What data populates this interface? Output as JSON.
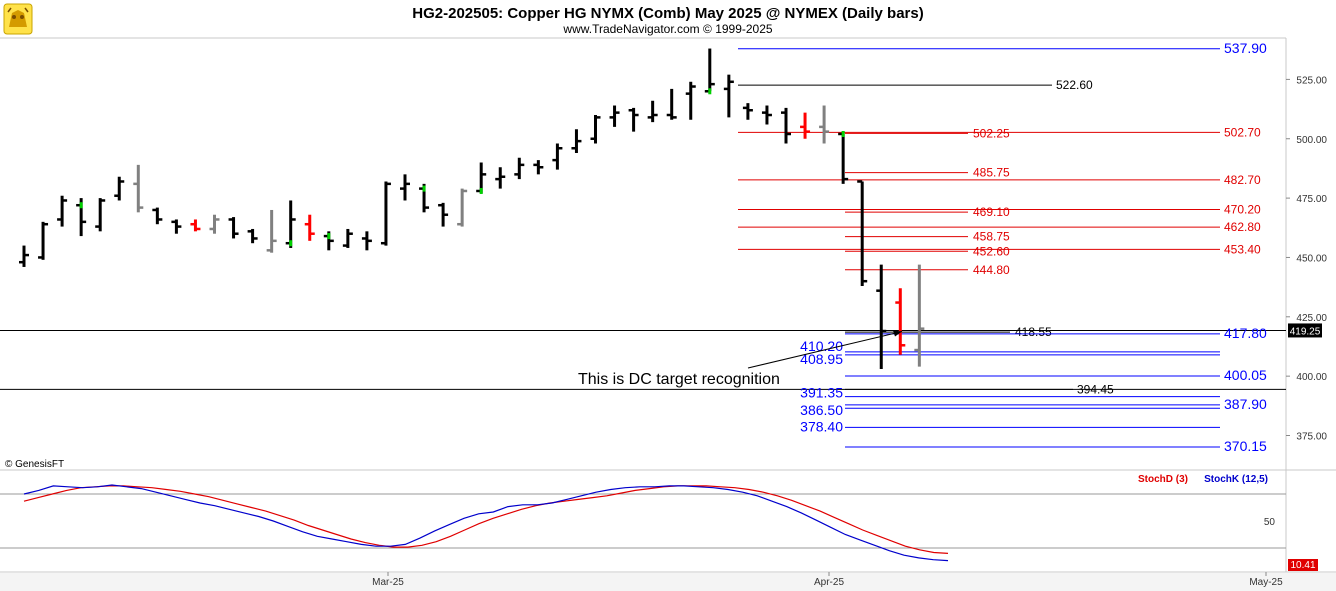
{
  "header": {
    "title": "HG2-202505:  Copper HG NYMX (Comb) May 2025 @ NYMEX  (Daily bars)",
    "subtitle": "www.TradeNavigator.com © 1999-2025",
    "logo_icon": "bull-and-bear-logo-icon"
  },
  "colors": {
    "background": "#ffffff",
    "frame": "#c8c8c8",
    "bar_black": "#000000",
    "bar_red": "#ff0000",
    "bar_gray": "#808080",
    "bar_green": "#00d000",
    "level_blue": "#0000ff",
    "level_red": "#e00000",
    "level_black": "#000000",
    "stoch_d": "#e00000",
    "stoch_k": "#0000cc"
  },
  "chart_data": [
    {
      "type": "ohlc",
      "title": "HG2-202505:  Copper HG NYMX (Comb) May 2025 @ NYMEX  (Daily bars)",
      "watermark": "© GenesisFT",
      "annotation": "This is DC target recognition",
      "last_price_label": "419.25",
      "ylim": [
        365,
        542
      ],
      "y_ticks": [
        "375.00",
        "400.00",
        "425.00",
        "450.00",
        "475.00",
        "500.00",
        "525.00"
      ],
      "x_ticks": [
        "Mar-25",
        "Apr-25",
        "May-25"
      ],
      "bars": [
        {
          "o": 448,
          "h": 455,
          "l": 446,
          "c": 451,
          "color": "black"
        },
        {
          "o": 450,
          "h": 465,
          "l": 449,
          "c": 464,
          "color": "black"
        },
        {
          "o": 466,
          "h": 476,
          "l": 463,
          "c": 474,
          "color": "black"
        },
        {
          "o": 472,
          "h": 475,
          "l": 459,
          "c": 465,
          "color": "black",
          "tick": "green"
        },
        {
          "o": 463,
          "h": 475,
          "l": 461,
          "c": 474,
          "color": "black"
        },
        {
          "o": 476,
          "h": 484,
          "l": 474,
          "c": 482,
          "color": "black"
        },
        {
          "o": 481,
          "h": 489,
          "l": 469,
          "c": 471,
          "color": "gray"
        },
        {
          "o": 470,
          "h": 471,
          "l": 464,
          "c": 466,
          "color": "black"
        },
        {
          "o": 465,
          "h": 466,
          "l": 460,
          "c": 463,
          "color": "black"
        },
        {
          "o": 464,
          "h": 466,
          "l": 461,
          "c": 462,
          "color": "red"
        },
        {
          "o": 462,
          "h": 468,
          "l": 460,
          "c": 466,
          "color": "gray"
        },
        {
          "o": 466,
          "h": 467,
          "l": 458,
          "c": 460,
          "color": "black"
        },
        {
          "o": 461,
          "h": 462,
          "l": 456,
          "c": 458,
          "color": "black"
        },
        {
          "o": 453,
          "h": 470,
          "l": 452,
          "c": 457,
          "color": "gray"
        },
        {
          "o": 456,
          "h": 474,
          "l": 454,
          "c": 466,
          "color": "black",
          "tick": "green"
        },
        {
          "o": 464,
          "h": 468,
          "l": 457,
          "c": 460,
          "color": "red"
        },
        {
          "o": 459,
          "h": 461,
          "l": 453,
          "c": 457,
          "color": "black",
          "tick": "green"
        },
        {
          "o": 455,
          "h": 462,
          "l": 454,
          "c": 460,
          "color": "black"
        },
        {
          "o": 458,
          "h": 461,
          "l": 453,
          "c": 457,
          "color": "black"
        },
        {
          "o": 456,
          "h": 482,
          "l": 455,
          "c": 481,
          "color": "black"
        },
        {
          "o": 479,
          "h": 485,
          "l": 474,
          "c": 481,
          "color": "black"
        },
        {
          "o": 479,
          "h": 481,
          "l": 469,
          "c": 471,
          "color": "black",
          "tick": "green"
        },
        {
          "o": 472,
          "h": 473,
          "l": 463,
          "c": 468,
          "color": "black"
        },
        {
          "o": 464,
          "h": 479,
          "l": 463,
          "c": 478,
          "color": "gray"
        },
        {
          "o": 478,
          "h": 490,
          "l": 477,
          "c": 485,
          "color": "black",
          "tick": "green"
        },
        {
          "o": 483,
          "h": 488,
          "l": 479,
          "c": 484,
          "color": "black"
        },
        {
          "o": 485,
          "h": 492,
          "l": 483,
          "c": 489,
          "color": "black"
        },
        {
          "o": 489,
          "h": 491,
          "l": 485,
          "c": 488,
          "color": "black"
        },
        {
          "o": 491,
          "h": 498,
          "l": 487,
          "c": 496,
          "color": "black"
        },
        {
          "o": 496,
          "h": 504,
          "l": 494,
          "c": 499,
          "color": "black"
        },
        {
          "o": 500,
          "h": 510,
          "l": 498,
          "c": 509,
          "color": "black"
        },
        {
          "o": 509,
          "h": 514,
          "l": 505,
          "c": 511,
          "color": "black"
        },
        {
          "o": 512,
          "h": 513,
          "l": 503,
          "c": 510,
          "color": "black"
        },
        {
          "o": 509,
          "h": 516,
          "l": 507,
          "c": 510,
          "color": "black"
        },
        {
          "o": 510,
          "h": 521,
          "l": 508,
          "c": 509,
          "color": "black"
        },
        {
          "o": 519,
          "h": 524,
          "l": 508,
          "c": 522,
          "color": "black"
        },
        {
          "o": 520,
          "h": 538,
          "l": 520,
          "c": 523,
          "color": "black",
          "tick": "green"
        },
        {
          "o": 521,
          "h": 527,
          "l": 509,
          "c": 524,
          "color": "black"
        },
        {
          "o": 513,
          "h": 515,
          "l": 508,
          "c": 512,
          "color": "black"
        },
        {
          "o": 511,
          "h": 514,
          "l": 506,
          "c": 510,
          "color": "black"
        },
        {
          "o": 511,
          "h": 513,
          "l": 498,
          "c": 502,
          "color": "black"
        },
        {
          "o": 505,
          "h": 511,
          "l": 500,
          "c": 503,
          "color": "red"
        },
        {
          "o": 505,
          "h": 514,
          "l": 498,
          "c": 503,
          "color": "gray"
        },
        {
          "o": 502,
          "h": 503,
          "l": 481,
          "c": 483,
          "color": "black",
          "tick": "green"
        },
        {
          "o": 482,
          "h": 482,
          "l": 438,
          "c": 440,
          "color": "black"
        },
        {
          "o": 436,
          "h": 447,
          "l": 403,
          "c": 419,
          "color": "black"
        },
        {
          "o": 431,
          "h": 437,
          "l": 409,
          "c": 413,
          "color": "red"
        },
        {
          "o": 411,
          "h": 447,
          "l": 404,
          "c": 420,
          "color": "gray"
        }
      ],
      "levels": [
        {
          "label": "537.90",
          "value": 537.9,
          "color": "blue",
          "side": "right"
        },
        {
          "label": "522.60",
          "value": 522.6,
          "color": "black",
          "side": "right"
        },
        {
          "label": "502.70",
          "value": 502.7,
          "color": "red",
          "side": "right"
        },
        {
          "label": "502.25",
          "value": 502.25,
          "color": "red",
          "side": "inner"
        },
        {
          "label": "485.75",
          "value": 485.75,
          "color": "red",
          "side": "inner"
        },
        {
          "label": "482.70",
          "value": 482.7,
          "color": "red",
          "side": "right"
        },
        {
          "label": "470.20",
          "value": 470.2,
          "color": "red",
          "side": "right"
        },
        {
          "label": "469.10",
          "value": 469.1,
          "color": "red",
          "side": "inner"
        },
        {
          "label": "462.80",
          "value": 462.8,
          "color": "red",
          "side": "right"
        },
        {
          "label": "458.75",
          "value": 458.75,
          "color": "red",
          "side": "inner"
        },
        {
          "label": "453.40",
          "value": 453.4,
          "color": "red",
          "side": "right"
        },
        {
          "label": "452.60",
          "value": 452.6,
          "color": "red",
          "side": "inner"
        },
        {
          "label": "444.80",
          "value": 444.8,
          "color": "red",
          "side": "inner"
        },
        {
          "label": "418.55",
          "value": 418.55,
          "color": "black",
          "side": "inner"
        },
        {
          "label": "417.80",
          "value": 417.8,
          "color": "blue",
          "side": "right"
        },
        {
          "label": "410.20",
          "value": 410.2,
          "color": "blue",
          "side": "left"
        },
        {
          "label": "408.95",
          "value": 408.95,
          "color": "blue",
          "side": "left"
        },
        {
          "label": "400.05",
          "value": 400.05,
          "color": "blue",
          "side": "right"
        },
        {
          "label": "394.45",
          "value": 394.45,
          "color": "black",
          "side": "inner"
        },
        {
          "label": "391.35",
          "value": 391.35,
          "color": "blue",
          "side": "left"
        },
        {
          "label": "387.90",
          "value": 387.9,
          "color": "blue",
          "side": "right"
        },
        {
          "label": "386.50",
          "value": 386.5,
          "color": "blue",
          "side": "left"
        },
        {
          "label": "378.40",
          "value": 378.4,
          "color": "blue",
          "side": "left"
        },
        {
          "label": "370.15",
          "value": 370.15,
          "color": "blue",
          "side": "right"
        }
      ]
    },
    {
      "type": "line",
      "legend": [
        "StochD (3)",
        "StochK (12,5)"
      ],
      "ylim": [
        0,
        100
      ],
      "y_ticks": [
        "50"
      ],
      "last_value_label": "10.41",
      "series": [
        {
          "name": "StochD (3)",
          "color": "red",
          "values": [
            72,
            76,
            80,
            84,
            87,
            88,
            89,
            89,
            88,
            87,
            85,
            83,
            80,
            77,
            73,
            69,
            65,
            61,
            56,
            51,
            45,
            40,
            35,
            30,
            26,
            23,
            21,
            21,
            23,
            27,
            33,
            40,
            47,
            53,
            58,
            63,
            67,
            70,
            72,
            74,
            76,
            78,
            81,
            84,
            86,
            88,
            89,
            89,
            89,
            88,
            87,
            85,
            82,
            78,
            73,
            67,
            61,
            54,
            47,
            40,
            34,
            28,
            22,
            18,
            15,
            14
          ]
        },
        {
          "name": "StochK (12,5)",
          "color": "blue",
          "values": [
            80,
            84,
            89,
            88,
            87,
            88,
            90,
            88,
            86,
            82,
            78,
            74,
            70,
            67,
            63,
            59,
            55,
            50,
            44,
            38,
            33,
            30,
            27,
            24,
            22,
            22,
            24,
            31,
            39,
            46,
            53,
            58,
            60,
            66,
            68,
            68,
            70,
            74,
            78,
            82,
            85,
            87,
            88,
            88,
            89,
            89,
            88,
            87,
            85,
            82,
            78,
            72,
            66,
            59,
            51,
            43,
            35,
            29,
            23,
            17,
            12,
            9,
            7,
            6
          ]
        }
      ]
    }
  ]
}
